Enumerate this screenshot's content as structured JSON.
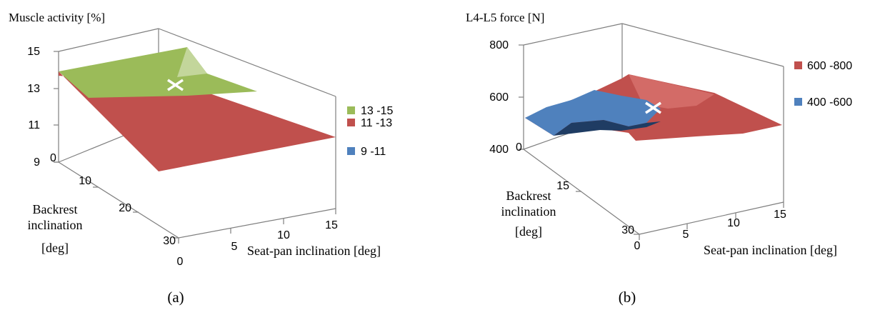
{
  "chart_data": [
    {
      "type": "surface",
      "panel_label": "(a)",
      "zlabel": "Muscle activity  [%]",
      "ylabel_lines": [
        "Backrest",
        "inclination",
        "[deg]"
      ],
      "xlabel": "Seat-pan inclination  [deg]",
      "zticks": [
        "15",
        "13",
        "11",
        "9"
      ],
      "yticks": [
        "0",
        "10",
        "20",
        "30"
      ],
      "xticks": [
        "0",
        "5",
        "10",
        "15"
      ],
      "zlim": [
        9,
        15
      ],
      "legend": [
        {
          "label": "13 -15",
          "color": "#9bbb59"
        },
        {
          "label": "11 -13",
          "color": "#c0504d"
        },
        {
          "label": "9 -11",
          "color": "#4f81bd"
        }
      ],
      "marker": "×"
    },
    {
      "type": "surface",
      "panel_label": "(b)",
      "zlabel": "L4-L5  force [N]",
      "ylabel_lines": [
        "Backrest",
        "inclination",
        "[deg]"
      ],
      "xlabel": "Seat-pan inclination  [deg]",
      "zticks": [
        "800",
        "600",
        "400"
      ],
      "yticks": [
        "0",
        "15",
        "30"
      ],
      "xticks": [
        "0",
        "5",
        "10",
        "15"
      ],
      "zlim": [
        400,
        800
      ],
      "legend": [
        {
          "label": "600 -800",
          "color": "#c0504d"
        },
        {
          "label": "400 -600",
          "color": "#4f81bd"
        }
      ],
      "marker": "×"
    }
  ]
}
